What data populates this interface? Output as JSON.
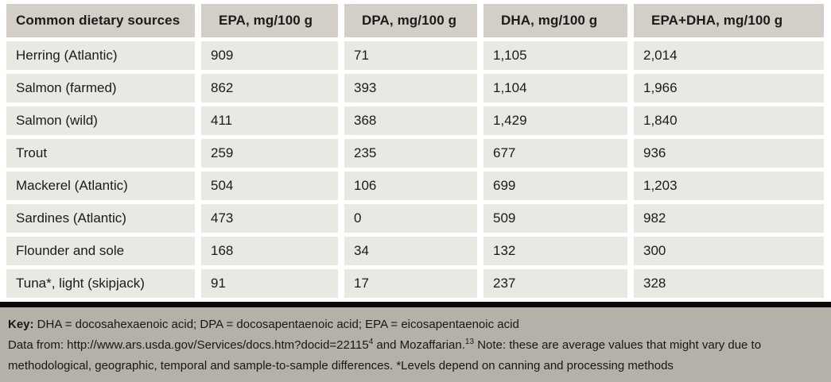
{
  "table": {
    "columns": [
      "Common dietary sources",
      "EPA, mg/100 g",
      "DPA, mg/100 g",
      "DHA, mg/100 g",
      "EPA+DHA, mg/100 g"
    ],
    "rows": [
      {
        "cells": [
          "Herring (Atlantic)",
          "909",
          "71",
          "1,105",
          "2,014"
        ]
      },
      {
        "cells": [
          "Salmon (farmed)",
          "862",
          "393",
          "1,104",
          "1,966"
        ]
      },
      {
        "cells": [
          "Salmon (wild)",
          "411",
          "368",
          "1,429",
          "1,840"
        ]
      },
      {
        "cells": [
          "Trout",
          "259",
          "235",
          "677",
          "936"
        ]
      },
      {
        "cells": [
          "Mackerel (Atlantic)",
          "504",
          "106",
          "699",
          "1,203"
        ]
      },
      {
        "cells": [
          "Sardines (Atlantic)",
          "473",
          "0",
          "509",
          "982"
        ]
      },
      {
        "cells": [
          "Flounder and sole",
          "168",
          "34",
          "132",
          "300"
        ]
      },
      {
        "cells": [
          "Tuna*, light (skipjack)",
          "91",
          "17",
          "237",
          "328"
        ]
      }
    ]
  },
  "chart_data": {
    "type": "table",
    "title": "",
    "columns": [
      "Common dietary sources",
      "EPA, mg/100 g",
      "DPA, mg/100 g",
      "DHA, mg/100 g",
      "EPA+DHA, mg/100 g"
    ],
    "categories": [
      "Herring (Atlantic)",
      "Salmon (farmed)",
      "Salmon (wild)",
      "Trout",
      "Mackerel (Atlantic)",
      "Sardines (Atlantic)",
      "Flounder and sole",
      "Tuna*, light (skipjack)"
    ],
    "series": [
      {
        "name": "EPA, mg/100 g",
        "values": [
          909,
          862,
          411,
          259,
          504,
          473,
          168,
          91
        ]
      },
      {
        "name": "DPA, mg/100 g",
        "values": [
          71,
          393,
          368,
          235,
          106,
          0,
          34,
          17
        ]
      },
      {
        "name": "DHA, mg/100 g",
        "values": [
          1105,
          1104,
          1429,
          677,
          699,
          509,
          132,
          237
        ]
      },
      {
        "name": "EPA+DHA, mg/100 g",
        "values": [
          2014,
          1966,
          1840,
          936,
          1203,
          982,
          300,
          328
        ]
      }
    ]
  },
  "footer": {
    "key_label": "Key:",
    "key_text": " DHA = docosahexaenoic acid; DPA = docosapentaenoic acid; EPA = eicosapentaenoic acid",
    "data_from_prefix": "Data from: http://www.ars.usda.gov/Services/docs.htm?docid=22115",
    "ref1_sup": "4",
    "data_from_mid": " and Mozaffarian.",
    "ref2_sup": "13",
    "data_from_suffix": " Note: these are average values that might vary due to methodological, geographic, temporal and sample-to-sample differences. *Levels depend on canning and processing methods"
  },
  "colors": {
    "header_bg": "#d3cfc8",
    "row_bg": "#eae8e3",
    "footer_bg": "#b5b1a9",
    "divider": "#080808",
    "text": "#1c1b19",
    "page_bg": "#ffffff"
  }
}
